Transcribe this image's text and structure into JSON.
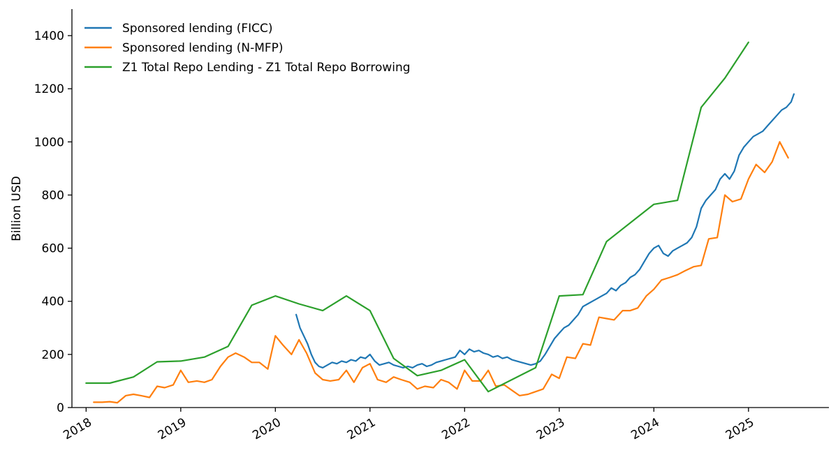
{
  "chart_data": {
    "type": "line",
    "title": "",
    "xlabel": "",
    "ylabel": "Billion USD",
    "xlim": [
      2017.85,
      2025.85
    ],
    "ylim": [
      0,
      1500
    ],
    "xticks": [
      2018,
      2019,
      2020,
      2021,
      2022,
      2023,
      2024,
      2025
    ],
    "xtick_labels": [
      "2018",
      "2019",
      "2020",
      "2021",
      "2022",
      "2023",
      "2024",
      "2025"
    ],
    "yticks": [
      0,
      200,
      400,
      600,
      800,
      1000,
      1200,
      1400
    ],
    "ytick_labels": [
      "0",
      "200",
      "400",
      "600",
      "800",
      "1000",
      "1200",
      "1400"
    ],
    "legend_position": "top-left",
    "grid": false,
    "series": [
      {
        "name": "Sponsored lending (FICC)",
        "color": "#1f77b4",
        "x": [
          2020.22,
          2020.26,
          2020.3,
          2020.34,
          2020.38,
          2020.42,
          2020.46,
          2020.5,
          2020.55,
          2020.6,
          2020.65,
          2020.7,
          2020.75,
          2020.8,
          2020.85,
          2020.9,
          2020.95,
          2021.0,
          2021.05,
          2021.1,
          2021.15,
          2021.2,
          2021.25,
          2021.3,
          2021.35,
          2021.4,
          2021.45,
          2021.5,
          2021.55,
          2021.6,
          2021.65,
          2021.7,
          2021.75,
          2021.8,
          2021.85,
          2021.9,
          2021.95,
          2022.0,
          2022.05,
          2022.1,
          2022.15,
          2022.2,
          2022.25,
          2022.3,
          2022.35,
          2022.4,
          2022.45,
          2022.5,
          2022.55,
          2022.6,
          2022.65,
          2022.7,
          2022.75,
          2022.8,
          2022.85,
          2022.9,
          2022.95,
          2023.0,
          2023.05,
          2023.1,
          2023.15,
          2023.2,
          2023.25,
          2023.3,
          2023.35,
          2023.4,
          2023.45,
          2023.5,
          2023.55,
          2023.6,
          2023.65,
          2023.7,
          2023.75,
          2023.8,
          2023.85,
          2023.9,
          2023.95,
          2024.0,
          2024.05,
          2024.1,
          2024.15,
          2024.2,
          2024.25,
          2024.3,
          2024.35,
          2024.4,
          2024.45,
          2024.5,
          2024.55,
          2024.6,
          2024.65,
          2024.7,
          2024.75,
          2024.8,
          2024.85,
          2024.9,
          2024.95,
          2025.0,
          2025.05,
          2025.1,
          2025.15,
          2025.2,
          2025.25,
          2025.3,
          2025.35,
          2025.4,
          2025.45,
          2025.48
        ],
        "values": [
          350,
          300,
          270,
          240,
          200,
          170,
          155,
          150,
          160,
          170,
          165,
          175,
          170,
          180,
          175,
          190,
          185,
          200,
          175,
          160,
          165,
          170,
          160,
          155,
          150,
          155,
          150,
          160,
          165,
          155,
          160,
          170,
          175,
          180,
          185,
          190,
          215,
          200,
          220,
          210,
          215,
          205,
          200,
          190,
          195,
          185,
          190,
          180,
          175,
          170,
          165,
          160,
          165,
          175,
          200,
          230,
          260,
          280,
          300,
          310,
          330,
          350,
          380,
          390,
          400,
          410,
          420,
          430,
          450,
          440,
          460,
          470,
          490,
          500,
          520,
          550,
          580,
          600,
          610,
          580,
          570,
          590,
          600,
          610,
          620,
          640,
          680,
          750,
          780,
          800,
          820,
          860,
          880,
          860,
          890,
          950,
          980,
          1000,
          1020,
          1030,
          1040,
          1060,
          1080,
          1100,
          1120,
          1130,
          1150,
          1180
        ]
      },
      {
        "name": "Sponsored lending (N-MFP)",
        "color": "#ff7f0e",
        "x": [
          2018.08,
          2018.17,
          2018.25,
          2018.33,
          2018.42,
          2018.5,
          2018.58,
          2018.67,
          2018.75,
          2018.83,
          2018.92,
          2019.0,
          2019.08,
          2019.17,
          2019.25,
          2019.33,
          2019.42,
          2019.5,
          2019.58,
          2019.67,
          2019.75,
          2019.83,
          2019.92,
          2020.0,
          2020.08,
          2020.17,
          2020.25,
          2020.33,
          2020.42,
          2020.5,
          2020.58,
          2020.67,
          2020.75,
          2020.83,
          2020.92,
          2021.0,
          2021.08,
          2021.17,
          2021.25,
          2021.33,
          2021.42,
          2021.5,
          2021.58,
          2021.67,
          2021.75,
          2021.83,
          2021.92,
          2022.0,
          2022.08,
          2022.17,
          2022.25,
          2022.33,
          2022.42,
          2022.5,
          2022.58,
          2022.67,
          2022.75,
          2022.83,
          2022.92,
          2023.0,
          2023.08,
          2023.17,
          2023.25,
          2023.33,
          2023.42,
          2023.5,
          2023.58,
          2023.67,
          2023.75,
          2023.83,
          2023.92,
          2024.0,
          2024.08,
          2024.17,
          2024.25,
          2024.33,
          2024.42,
          2024.5,
          2024.58,
          2024.67,
          2024.75,
          2024.83,
          2024.92,
          2025.0,
          2025.08,
          2025.17,
          2025.25,
          2025.33,
          2025.42
        ],
        "values": [
          20,
          20,
          22,
          18,
          45,
          50,
          45,
          38,
          80,
          75,
          85,
          140,
          95,
          100,
          95,
          105,
          155,
          190,
          205,
          190,
          170,
          170,
          145,
          270,
          235,
          200,
          255,
          205,
          130,
          105,
          100,
          105,
          140,
          95,
          150,
          165,
          105,
          95,
          115,
          105,
          95,
          70,
          80,
          75,
          105,
          95,
          70,
          140,
          100,
          100,
          140,
          80,
          85,
          65,
          45,
          50,
          60,
          70,
          125,
          110,
          190,
          185,
          240,
          235,
          340,
          335,
          330,
          365,
          365,
          375,
          420,
          445,
          480,
          490,
          500,
          515,
          530,
          535,
          635,
          640,
          800,
          775,
          785,
          860,
          915,
          885,
          925,
          1000,
          940
        ]
      },
      {
        "name": "Z1 Total Repo Lending - Z1 Total Repo Borrowing",
        "color": "#2ca02c",
        "x": [
          2018.0,
          2018.25,
          2018.5,
          2018.75,
          2019.0,
          2019.25,
          2019.5,
          2019.75,
          2020.0,
          2020.25,
          2020.5,
          2020.75,
          2021.0,
          2021.25,
          2021.5,
          2021.75,
          2022.0,
          2022.25,
          2022.5,
          2022.75,
          2023.0,
          2023.25,
          2023.5,
          2023.75,
          2024.0,
          2024.25,
          2024.5,
          2024.75,
          2025.0
        ],
        "values": [
          92,
          92,
          115,
          172,
          175,
          190,
          230,
          385,
          420,
          390,
          365,
          420,
          365,
          185,
          120,
          140,
          180,
          60,
          105,
          150,
          420,
          425,
          625,
          695,
          765,
          780,
          1130,
          1240,
          1375
        ]
      }
    ]
  }
}
